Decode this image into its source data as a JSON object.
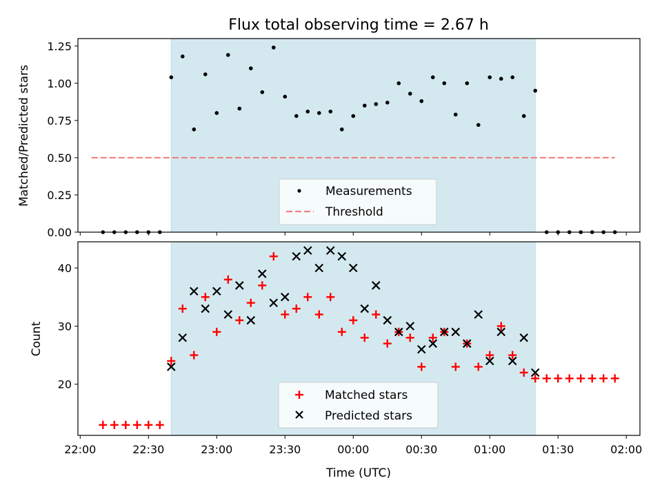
{
  "figure": {
    "title": "Flux total observing time = 2.67 h"
  },
  "chart_data": [
    {
      "type": "scatter",
      "title": "Flux total observing time = 2.67 h",
      "xlabel": "",
      "ylabel": "Matched/Predicted stars",
      "xlim": [
        "21:59",
        "02:06"
      ],
      "ylim": [
        0,
        1.3
      ],
      "x_ticks": [
        "22:00",
        "22:30",
        "23:00",
        "23:30",
        "00:00",
        "00:30",
        "01:00",
        "01:30",
        "02:00"
      ],
      "y_ticks": [
        0,
        0.25,
        0.5,
        0.75,
        1.0,
        1.25
      ],
      "y_tick_labels": [
        "0.00",
        "0.25",
        "0.50",
        "0.75",
        "1.00",
        "1.25"
      ],
      "shaded_span": [
        "22:40",
        "01:20"
      ],
      "shaded_color": "#d3e9ef",
      "legend_position": "lower center",
      "series": [
        {
          "name": "Measurements",
          "marker": "dot",
          "color": "#000000",
          "x": [
            "22:10",
            "22:15",
            "22:20",
            "22:25",
            "22:30",
            "22:35",
            "22:40",
            "22:45",
            "22:50",
            "22:55",
            "23:00",
            "23:05",
            "23:10",
            "23:15",
            "23:20",
            "23:25",
            "23:30",
            "23:35",
            "23:40",
            "23:45",
            "23:50",
            "23:55",
            "00:00",
            "00:05",
            "00:10",
            "00:15",
            "00:20",
            "00:25",
            "00:30",
            "00:35",
            "00:40",
            "00:45",
            "00:50",
            "00:55",
            "01:00",
            "01:05",
            "01:10",
            "01:15",
            "01:20",
            "01:25",
            "01:30",
            "01:35",
            "01:40",
            "01:45",
            "01:50",
            "01:55"
          ],
          "y": [
            0,
            0,
            0,
            0,
            0,
            0,
            1.04,
            1.18,
            0.69,
            1.06,
            0.8,
            1.19,
            0.83,
            1.1,
            0.94,
            1.24,
            0.91,
            0.78,
            0.81,
            0.8,
            0.81,
            0.69,
            0.78,
            0.85,
            0.86,
            0.87,
            1.0,
            0.93,
            0.88,
            1.04,
            1.0,
            0.79,
            1.0,
            0.72,
            1.04,
            1.03,
            1.04,
            0.78,
            0.95,
            0,
            0,
            0,
            0,
            0,
            0,
            0
          ]
        },
        {
          "name": "Threshold",
          "style": "dashed",
          "color": "#f08080",
          "x": [
            "22:05",
            "01:55"
          ],
          "y": [
            0.5,
            0.5
          ]
        }
      ]
    },
    {
      "type": "scatter",
      "xlabel": "Time (UTC)",
      "ylabel": "Count",
      "xlim": [
        "21:59",
        "02:06"
      ],
      "ylim": [
        11.2,
        44.5
      ],
      "x_ticks": [
        "22:00",
        "22:30",
        "23:00",
        "23:30",
        "00:00",
        "00:30",
        "01:00",
        "01:30",
        "02:00"
      ],
      "y_ticks": [
        20,
        30,
        40
      ],
      "y_tick_labels": [
        "20",
        "30",
        "40"
      ],
      "shaded_span": [
        "22:40",
        "01:20"
      ],
      "shaded_color": "#d3e9ef",
      "legend_position": "lower center",
      "series": [
        {
          "name": "Matched stars",
          "marker": "plus",
          "color": "#ff0000",
          "x": [
            "22:10",
            "22:15",
            "22:20",
            "22:25",
            "22:30",
            "22:35",
            "22:40",
            "22:45",
            "22:50",
            "22:55",
            "23:00",
            "23:05",
            "23:10",
            "23:15",
            "23:20",
            "23:25",
            "23:30",
            "23:35",
            "23:40",
            "23:45",
            "23:50",
            "23:55",
            "00:00",
            "00:05",
            "00:10",
            "00:15",
            "00:20",
            "00:25",
            "00:30",
            "00:35",
            "00:40",
            "00:45",
            "00:50",
            "00:55",
            "01:00",
            "01:05",
            "01:10",
            "01:15",
            "01:20",
            "01:25",
            "01:30",
            "01:35",
            "01:40",
            "01:45",
            "01:50",
            "01:55"
          ],
          "y": [
            13,
            13,
            13,
            13,
            13,
            13,
            24,
            33,
            25,
            35,
            29,
            38,
            31,
            34,
            37,
            42,
            32,
            33,
            35,
            32,
            35,
            29,
            31,
            28,
            32,
            27,
            29,
            28,
            23,
            28,
            29,
            23,
            27,
            23,
            25,
            30,
            25,
            22,
            21,
            21,
            21,
            21,
            21,
            21,
            21,
            21
          ]
        },
        {
          "name": "Predicted stars",
          "marker": "x",
          "color": "#000000",
          "x": [
            "22:40",
            "22:45",
            "22:50",
            "22:55",
            "23:00",
            "23:05",
            "23:10",
            "23:15",
            "23:20",
            "23:25",
            "23:30",
            "23:35",
            "23:40",
            "23:45",
            "23:50",
            "23:55",
            "00:00",
            "00:05",
            "00:10",
            "00:15",
            "00:20",
            "00:25",
            "00:30",
            "00:35",
            "00:40",
            "00:45",
            "00:50",
            "00:55",
            "01:00",
            "01:05",
            "01:10",
            "01:15",
            "01:20"
          ],
          "y": [
            23,
            28,
            36,
            33,
            36,
            32,
            37,
            31,
            39,
            34,
            35,
            42,
            43,
            40,
            43,
            42,
            40,
            33,
            37,
            31,
            29,
            30,
            26,
            27,
            29,
            29,
            27,
            32,
            24,
            29,
            24,
            28,
            22
          ]
        }
      ]
    }
  ]
}
